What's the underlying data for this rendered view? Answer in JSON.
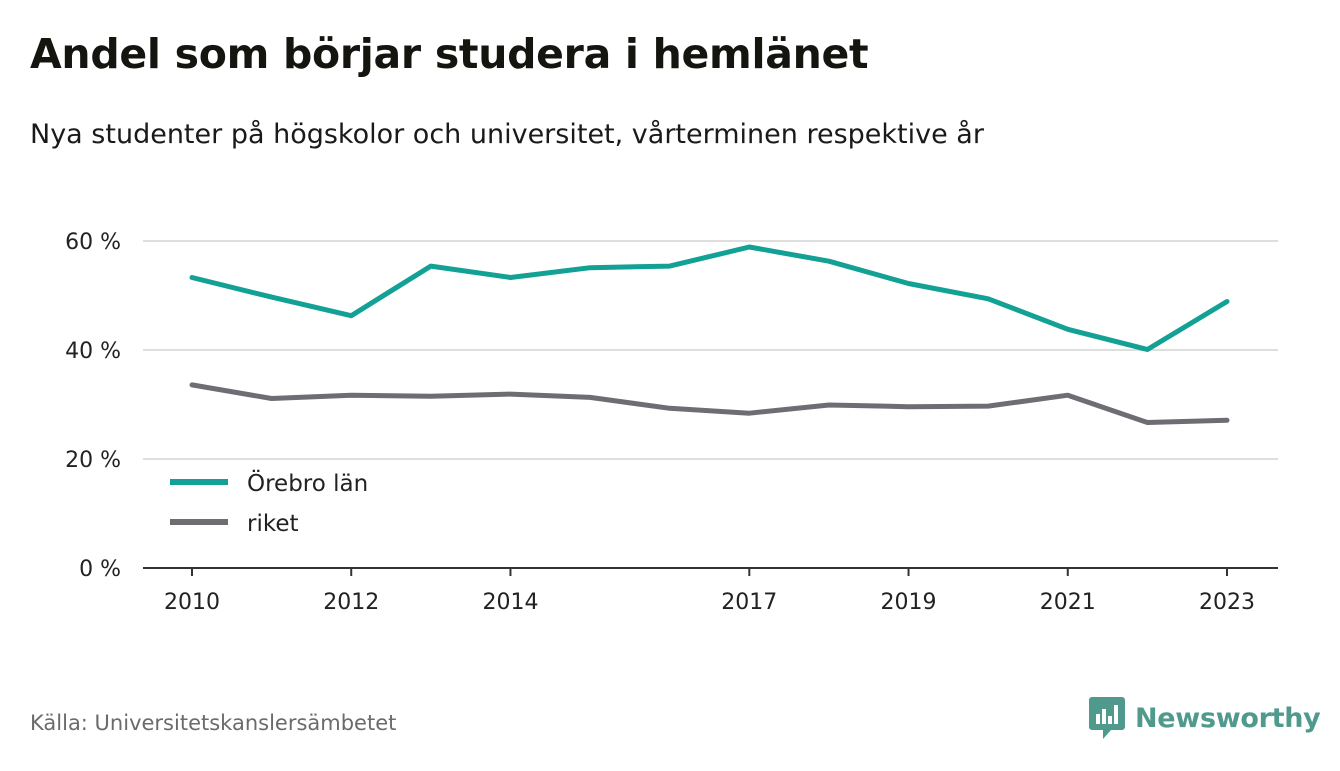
{
  "title": "Andel som börjar studera i hemlänet",
  "subtitle": "Nya studenter på högskolor och universitet, vårterminen respektive år",
  "source": "Källa: Universitetskanslersämbetet",
  "brand": {
    "name": "Newsworthy",
    "icon": "newsworthy-logo-icon",
    "color": "#4f9a8c"
  },
  "colors": {
    "grid": "#dedede",
    "axis": "#333333",
    "text": "#222222"
  },
  "chart_data": {
    "type": "line",
    "x": [
      2010,
      2011,
      2012,
      2013,
      2014,
      2015,
      2016,
      2017,
      2018,
      2019,
      2020,
      2021,
      2022,
      2023
    ],
    "x_tick_values": [
      2010,
      2012,
      2014,
      2017,
      2019,
      2021,
      2023
    ],
    "x_tick_labels": [
      "2010",
      "2012",
      "2014",
      "2017",
      "2019",
      "2021",
      "2023"
    ],
    "y_tick_values": [
      0,
      20,
      40,
      60
    ],
    "y_tick_labels": [
      "0 %",
      "20 %",
      "40 %",
      "60 %"
    ],
    "ylim": [
      0,
      60
    ],
    "xlim": [
      2010,
      2023
    ],
    "grid": true,
    "legend_position": "bottom-left",
    "series": [
      {
        "name": "Örebro län",
        "color": "#12a194",
        "values": [
          53.3,
          49.7,
          46.3,
          55.4,
          53.3,
          55.1,
          55.4,
          58.9,
          56.3,
          52.2,
          49.4,
          43.8,
          40.1,
          48.9
        ]
      },
      {
        "name": "riket",
        "color": "#6e6d73",
        "values": [
          33.6,
          31.1,
          31.7,
          31.5,
          31.9,
          31.3,
          29.3,
          28.4,
          29.9,
          29.6,
          29.7,
          31.7,
          26.7,
          27.1
        ]
      }
    ]
  }
}
